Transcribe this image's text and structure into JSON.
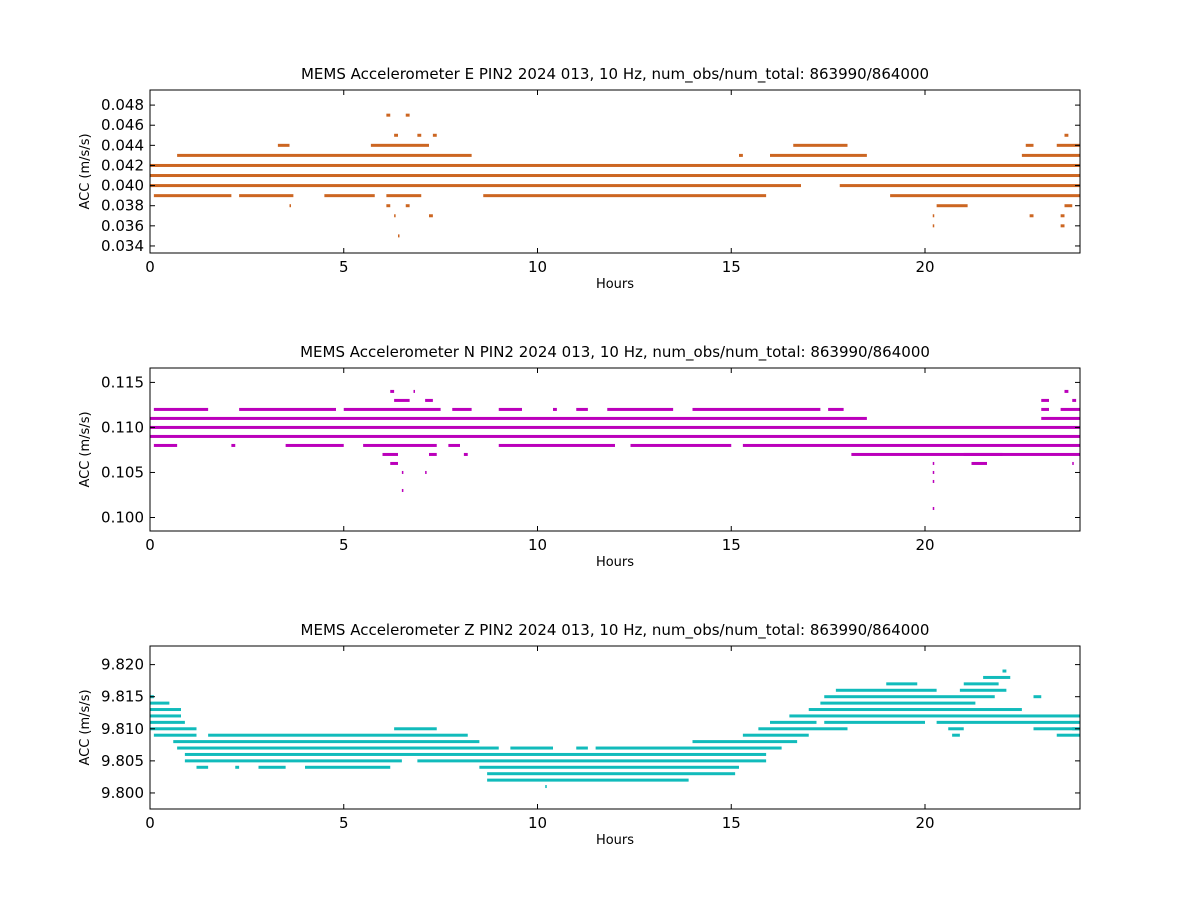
{
  "chart_data": [
    {
      "type": "scatter",
      "title": "MEMS Accelerometer E PIN2 2024 013, 10 Hz, num_obs/num_total: 863990/864000",
      "xlabel": "Hours",
      "ylabel": "ACC (m/s/s)",
      "xlim": [
        0,
        24
      ],
      "ylim": [
        0.0333,
        0.0495
      ],
      "xticks": [
        0,
        5,
        10,
        15,
        20
      ],
      "yticks": [
        "0.034",
        "0.036",
        "0.038",
        "0.040",
        "0.042",
        "0.044",
        "0.046",
        "0.048"
      ],
      "color": "#cc6622",
      "series": [
        {
          "segments": [
            [
              0,
              24
            ]
          ],
          "y": 0.042
        },
        {
          "segments": [
            [
              0,
              24
            ]
          ],
          "y": 0.041
        },
        {
          "segments": [
            [
              0,
              16.8
            ],
            [
              17.8,
              24
            ]
          ],
          "y": 0.04
        },
        {
          "segments": [
            [
              0.1,
              2.1
            ],
            [
              2.3,
              3.7
            ],
            [
              4.5,
              5.8
            ],
            [
              6.1,
              7.0
            ],
            [
              8.6,
              15.9
            ],
            [
              19.1,
              24
            ]
          ],
          "y": 0.039
        },
        {
          "segments": [
            [
              0.7,
              8.3
            ],
            [
              15.2,
              15.3
            ],
            [
              16.0,
              18.5
            ],
            [
              22.5,
              24
            ]
          ],
          "y": 0.043
        },
        {
          "segments": [
            [
              3.3,
              3.6
            ],
            [
              5.7,
              7.2
            ],
            [
              16.6,
              18.0
            ],
            [
              22.6,
              22.8
            ],
            [
              23.4,
              24
            ]
          ],
          "y": 0.044
        },
        {
          "segments": [
            [
              6.3,
              6.4
            ],
            [
              6.9,
              7.0
            ],
            [
              7.3,
              7.4
            ],
            [
              23.6,
              23.7
            ]
          ],
          "y": 0.045
        },
        {
          "segments": [
            [
              6.1,
              6.2
            ],
            [
              6.6,
              6.7
            ]
          ],
          "y": 0.047
        },
        {
          "segments": [
            [
              3.6,
              3.6
            ],
            [
              6.1,
              6.2
            ],
            [
              6.6,
              6.7
            ],
            [
              20.3,
              21.1
            ],
            [
              23.6,
              23.8
            ]
          ],
          "y": 0.038
        },
        {
          "segments": [
            [
              6.3,
              6.3
            ],
            [
              7.2,
              7.3
            ],
            [
              20.2,
              20.2
            ],
            [
              22.7,
              22.8
            ],
            [
              23.5,
              23.6
            ]
          ],
          "y": 0.037
        },
        {
          "segments": [
            [
              20.2,
              20.2
            ],
            [
              23.5,
              23.6
            ]
          ],
          "y": 0.036
        },
        {
          "segments": [
            [
              6.4,
              6.4
            ]
          ],
          "y": 0.035
        }
      ]
    },
    {
      "type": "scatter",
      "title": "MEMS Accelerometer N PIN2 2024 013, 10 Hz, num_obs/num_total: 863990/864000",
      "xlabel": "Hours",
      "ylabel": "ACC (m/s/s)",
      "xlim": [
        0,
        24
      ],
      "ylim": [
        0.0985,
        0.1166
      ],
      "xticks": [
        0,
        5,
        10,
        15,
        20
      ],
      "yticks": [
        "0.100",
        "0.105",
        "0.110",
        "0.115"
      ],
      "color": "#bb00bb",
      "series": [
        {
          "segments": [
            [
              0,
              24
            ]
          ],
          "y": 0.11
        },
        {
          "segments": [
            [
              0,
              24
            ]
          ],
          "y": 0.109
        },
        {
          "segments": [
            [
              0,
              18.5
            ],
            [
              23.0,
              24
            ]
          ],
          "y": 0.111
        },
        {
          "segments": [
            [
              0.1,
              1.5
            ],
            [
              2.3,
              4.8
            ],
            [
              5.0,
              7.5
            ],
            [
              7.8,
              8.3
            ],
            [
              9.0,
              9.6
            ],
            [
              10.4,
              10.5
            ],
            [
              11.0,
              11.3
            ],
            [
              11.8,
              13.5
            ],
            [
              14.0,
              17.3
            ],
            [
              17.5,
              17.9
            ],
            [
              23.0,
              23.2
            ],
            [
              23.5,
              24
            ]
          ],
          "y": 0.112
        },
        {
          "segments": [
            [
              0.1,
              0.7
            ],
            [
              2.1,
              2.2
            ],
            [
              3.5,
              5.0
            ],
            [
              5.5,
              7.4
            ],
            [
              7.7,
              8.0
            ],
            [
              9.0,
              12.0
            ],
            [
              12.4,
              15.0
            ],
            [
              15.3,
              24
            ]
          ],
          "y": 0.108
        },
        {
          "segments": [
            [
              18.1,
              24
            ]
          ],
          "y": 0.107
        },
        {
          "segments": [
            [
              6.3,
              6.7
            ],
            [
              7.1,
              7.3
            ],
            [
              23.0,
              23.2
            ],
            [
              23.8,
              23.9
            ]
          ],
          "y": 0.113
        },
        {
          "segments": [
            [
              6.2,
              6.3
            ],
            [
              6.8,
              6.8
            ],
            [
              23.6,
              23.7
            ]
          ],
          "y": 0.114
        },
        {
          "segments": [
            [
              6.0,
              6.4
            ],
            [
              7.2,
              7.4
            ],
            [
              8.1,
              8.2
            ],
            [
              21.0,
              22.0
            ]
          ],
          "y": 0.107
        },
        {
          "segments": [
            [
              6.2,
              6.4
            ],
            [
              20.2,
              20.2
            ],
            [
              21.2,
              21.6
            ],
            [
              23.8,
              23.8
            ]
          ],
          "y": 0.106
        },
        {
          "segments": [
            [
              6.5,
              6.5
            ],
            [
              7.1,
              7.1
            ],
            [
              20.2,
              20.2
            ]
          ],
          "y": 0.105
        },
        {
          "segments": [
            [
              20.2,
              20.2
            ]
          ],
          "y": 0.104
        },
        {
          "segments": [
            [
              6.5,
              6.5
            ]
          ],
          "y": 0.103
        },
        {
          "segments": [
            [
              20.2,
              20.2
            ]
          ],
          "y": 0.101
        }
      ]
    },
    {
      "type": "scatter",
      "title": "MEMS Accelerometer Z PIN2 2024 013, 10 Hz, num_obs/num_total: 863990/864000",
      "xlabel": "Hours",
      "ylabel": "ACC (m/s/s)",
      "xlim": [
        0,
        24
      ],
      "ylim": [
        9.7975,
        9.8229
      ],
      "xticks": [
        0,
        5,
        10,
        15,
        20
      ],
      "yticks": [
        "9.800",
        "9.805",
        "9.810",
        "9.815",
        "9.820"
      ],
      "color": "#11bbbb",
      "series": [
        {
          "segments": [
            [
              0,
              0.1
            ]
          ],
          "y": 9.815
        },
        {
          "segments": [
            [
              0,
              0.5
            ]
          ],
          "y": 9.814
        },
        {
          "segments": [
            [
              0,
              0.8
            ]
          ],
          "y": 9.813
        },
        {
          "segments": [
            [
              0,
              0.8
            ]
          ],
          "y": 9.812
        },
        {
          "segments": [
            [
              0,
              0.9
            ]
          ],
          "y": 9.811
        },
        {
          "segments": [
            [
              0,
              1.2
            ],
            [
              6.3,
              7.4
            ],
            [
              15.7,
              18.0
            ],
            [
              22.8,
              24
            ]
          ],
          "y": 9.81
        },
        {
          "segments": [
            [
              0.1,
              1.2
            ],
            [
              1.5,
              8.2
            ],
            [
              15.3,
              17.0
            ],
            [
              23.4,
              24
            ]
          ],
          "y": 9.809
        },
        {
          "segments": [
            [
              0.6,
              8.5
            ],
            [
              14.0,
              16.7
            ]
          ],
          "y": 9.808
        },
        {
          "segments": [
            [
              0.7,
              9.0
            ],
            [
              9.3,
              10.4
            ],
            [
              11.0,
              11.3
            ],
            [
              11.5,
              16.3
            ]
          ],
          "y": 9.807
        },
        {
          "segments": [
            [
              0.9,
              15.9
            ]
          ],
          "y": 9.806
        },
        {
          "segments": [
            [
              0.9,
              6.5
            ],
            [
              6.9,
              15.9
            ]
          ],
          "y": 9.805
        },
        {
          "segments": [
            [
              1.2,
              1.5
            ],
            [
              2.2,
              2.3
            ],
            [
              2.8,
              3.5
            ],
            [
              4.0,
              6.2
            ],
            [
              8.5,
              15.2
            ]
          ],
          "y": 9.804
        },
        {
          "segments": [
            [
              8.7,
              15.1
            ]
          ],
          "y": 9.803
        },
        {
          "segments": [
            [
              8.7,
              13.9
            ]
          ],
          "y": 9.802
        },
        {
          "segments": [
            [
              10.2,
              10.2
            ]
          ],
          "y": 9.801
        },
        {
          "segments": [
            [
              16.0,
              17.2
            ],
            [
              17.4,
              20.0
            ],
            [
              20.3,
              24
            ]
          ],
          "y": 9.811
        },
        {
          "segments": [
            [
              16.5,
              24
            ]
          ],
          "y": 9.812
        },
        {
          "segments": [
            [
              17.0,
              22.5
            ]
          ],
          "y": 9.813
        },
        {
          "segments": [
            [
              17.3,
              21.3
            ]
          ],
          "y": 9.814
        },
        {
          "segments": [
            [
              17.4,
              21.8
            ],
            [
              22.8,
              23.0
            ]
          ],
          "y": 9.815
        },
        {
          "segments": [
            [
              17.7,
              20.3
            ],
            [
              20.9,
              22.1
            ]
          ],
          "y": 9.816
        },
        {
          "segments": [
            [
              19.0,
              19.8
            ],
            [
              21.0,
              21.9
            ]
          ],
          "y": 9.817
        },
        {
          "segments": [
            [
              21.5,
              22.2
            ]
          ],
          "y": 9.818
        },
        {
          "segments": [
            [
              22.0,
              22.1
            ]
          ],
          "y": 9.819
        },
        {
          "segments": [
            [
              20.6,
              21.0
            ],
            [
              23.8,
              24
            ]
          ],
          "y": 9.81
        },
        {
          "segments": [
            [
              20.7,
              20.9
            ]
          ],
          "y": 9.809
        }
      ]
    }
  ]
}
